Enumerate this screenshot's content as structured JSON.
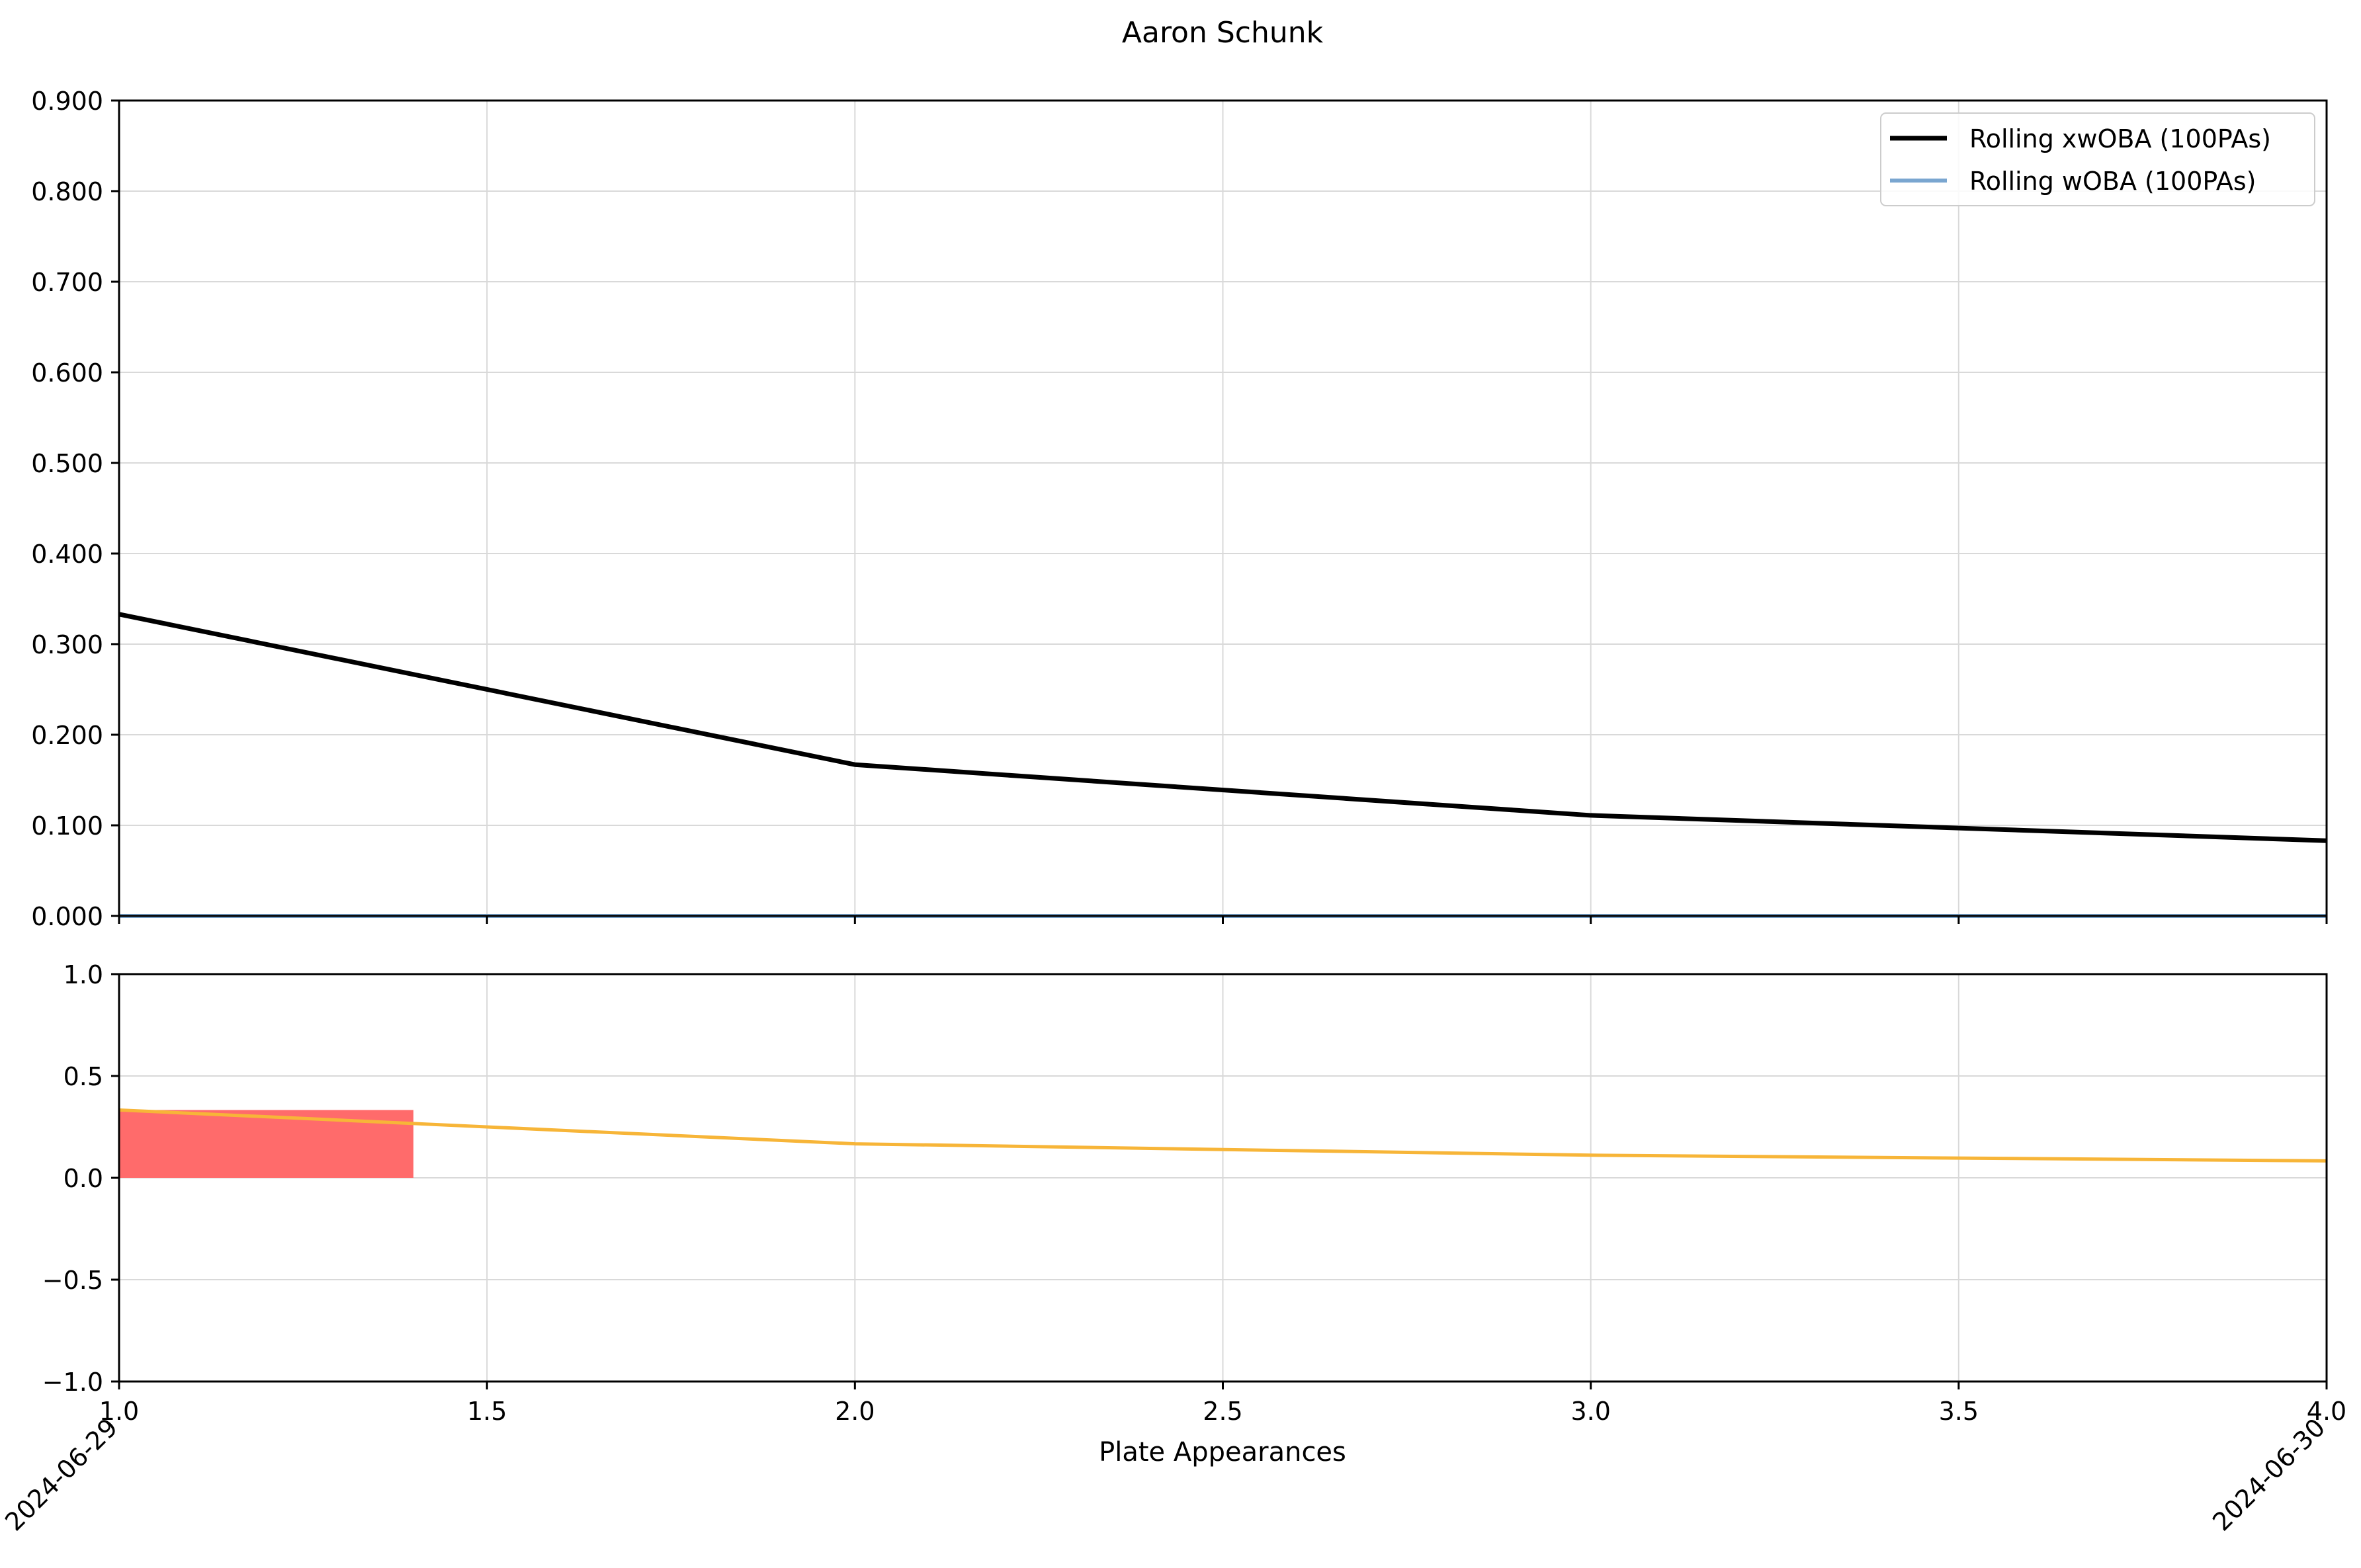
{
  "chart_data": [
    {
      "type": "line",
      "title": "Aaron Schunk",
      "xlabel": "",
      "ylabel": "",
      "xlim": [
        1.0,
        4.0
      ],
      "ylim": [
        0.0,
        0.9
      ],
      "y_ticks": [
        0.0,
        0.1,
        0.2,
        0.3,
        0.4,
        0.5,
        0.6,
        0.7,
        0.8,
        0.9
      ],
      "y_tick_labels": [
        "0.000",
        "0.100",
        "0.200",
        "0.300",
        "0.400",
        "0.500",
        "0.600",
        "0.700",
        "0.800",
        "0.900"
      ],
      "x_ticks": [
        1.0,
        1.5,
        2.0,
        2.5,
        3.0,
        3.5,
        4.0
      ],
      "grid": true,
      "legend": "top-right",
      "series": [
        {
          "name": "Rolling xwOBA (100PAs)",
          "color": "#000000",
          "x": [
            1,
            2,
            3,
            4
          ],
          "values": [
            0.333,
            0.167,
            0.111,
            0.083
          ]
        },
        {
          "name": "Rolling wOBA (100PAs)",
          "color": "#7aa6d0",
          "x": [
            1,
            2,
            3,
            4
          ],
          "values": [
            0.0,
            0.0,
            0.0,
            0.0
          ]
        }
      ]
    },
    {
      "type": "line",
      "title": "",
      "xlabel": "Plate Appearances",
      "ylabel": "",
      "xlim": [
        1.0,
        4.0
      ],
      "ylim": [
        -1.0,
        1.0
      ],
      "y_ticks": [
        -1.0,
        -0.5,
        0.0,
        0.5,
        1.0
      ],
      "y_tick_labels": [
        "−1.0",
        "−0.5",
        "0.0",
        "0.5",
        "1.0"
      ],
      "x_ticks": [
        1.0,
        1.5,
        2.0,
        2.5,
        3.0,
        3.5,
        4.0
      ],
      "x_tick_labels": [
        "1.0",
        "1.5",
        "2.0",
        "2.5",
        "3.0",
        "3.5",
        "4.0"
      ],
      "date_labels": [
        {
          "x": 1.0,
          "label": "2024-06-29"
        },
        {
          "x": 4.0,
          "label": "2024-06-30"
        }
      ],
      "grid": true,
      "bars": [
        {
          "x0": 1.0,
          "x1": 1.4,
          "value": 0.333,
          "color": "#ff6b6b"
        }
      ],
      "series": [
        {
          "color": "#f7b538",
          "x": [
            1,
            2,
            3,
            4
          ],
          "values": [
            0.333,
            0.167,
            0.111,
            0.083
          ]
        }
      ]
    }
  ]
}
